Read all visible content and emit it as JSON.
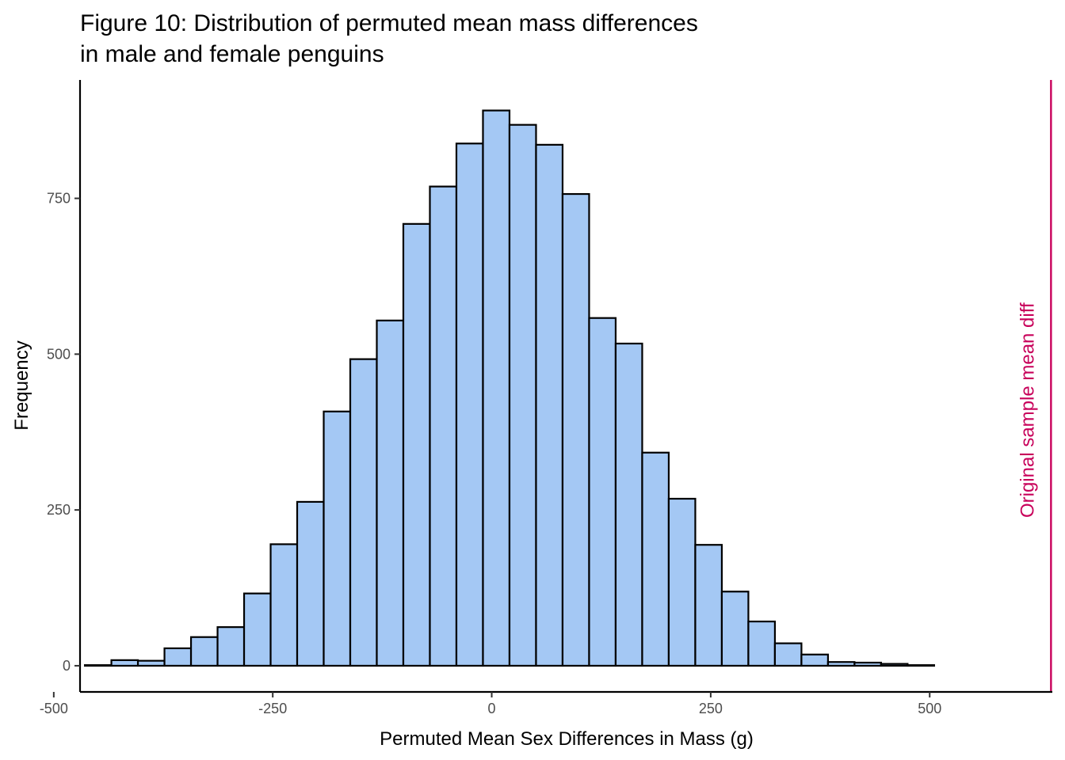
{
  "chart_data": {
    "type": "bar",
    "title_lines": [
      "Figure 10: Distribution of permuted mean mass differences",
      "in male and female penguins"
    ],
    "xlabel": "Permuted Mean Sex Differences in Mass (g)",
    "ylabel": "Frequency",
    "xlim": [
      -470,
      640
    ],
    "ylim": [
      -42,
      940
    ],
    "x_ticks": [
      {
        "value": -500,
        "label": "-500"
      },
      {
        "value": -250,
        "label": "-250"
      },
      {
        "value": 0,
        "label": "0"
      },
      {
        "value": 250,
        "label": "250"
      },
      {
        "value": 500,
        "label": "500"
      }
    ],
    "y_ticks": [
      {
        "value": 0,
        "label": "0"
      },
      {
        "value": 250,
        "label": "250"
      },
      {
        "value": 500,
        "label": "500"
      },
      {
        "value": 750,
        "label": "750"
      }
    ],
    "bin_width": 30.3,
    "bins": [
      {
        "x0": -464.5,
        "count": 1
      },
      {
        "x0": -434.2,
        "count": 9
      },
      {
        "x0": -403.9,
        "count": 8
      },
      {
        "x0": -373.6,
        "count": 28
      },
      {
        "x0": -343.3,
        "count": 46
      },
      {
        "x0": -313.0,
        "count": 62
      },
      {
        "x0": -282.7,
        "count": 116
      },
      {
        "x0": -252.4,
        "count": 195
      },
      {
        "x0": -222.1,
        "count": 263
      },
      {
        "x0": -191.8,
        "count": 408
      },
      {
        "x0": -161.5,
        "count": 492
      },
      {
        "x0": -131.2,
        "count": 554
      },
      {
        "x0": -100.9,
        "count": 709
      },
      {
        "x0": -70.6,
        "count": 769
      },
      {
        "x0": -40.3,
        "count": 838
      },
      {
        "x0": -10.0,
        "count": 891
      },
      {
        "x0": 20.3,
        "count": 868
      },
      {
        "x0": 50.6,
        "count": 836
      },
      {
        "x0": 80.9,
        "count": 757
      },
      {
        "x0": 111.2,
        "count": 558
      },
      {
        "x0": 141.5,
        "count": 517
      },
      {
        "x0": 171.8,
        "count": 342
      },
      {
        "x0": 202.1,
        "count": 268
      },
      {
        "x0": 232.4,
        "count": 194
      },
      {
        "x0": 262.7,
        "count": 119
      },
      {
        "x0": 293.0,
        "count": 71
      },
      {
        "x0": 323.3,
        "count": 36
      },
      {
        "x0": 353.6,
        "count": 18
      },
      {
        "x0": 383.9,
        "count": 6
      },
      {
        "x0": 414.2,
        "count": 5
      },
      {
        "x0": 444.5,
        "count": 3
      },
      {
        "x0": 474.8,
        "count": 1
      },
      {
        "x0": 505.1,
        "count": 0
      },
      {
        "x0": 535.4,
        "count": 0
      },
      {
        "x0": 565.7,
        "count": 0
      },
      {
        "x0": 596.0,
        "count": 0
      }
    ],
    "reference_line": {
      "x": 638.5,
      "label": "Original sample mean diff",
      "color": "#c8005a"
    },
    "bar_fill": "#a4c8f4",
    "bar_stroke": "#000000",
    "grid": false,
    "legend": "none"
  }
}
